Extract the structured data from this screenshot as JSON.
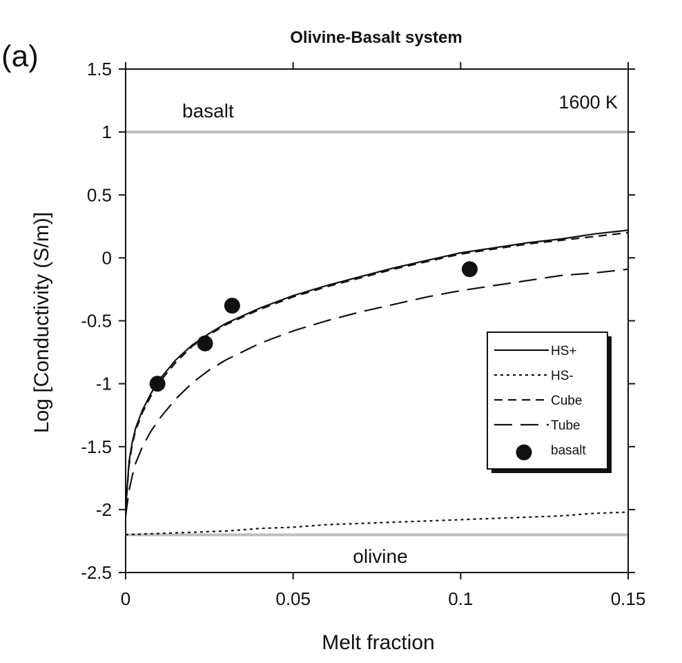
{
  "panel_label": "(a)",
  "chart_data": {
    "type": "line",
    "title": "Olivine-Basalt system",
    "xlabel": "Melt fraction",
    "ylabel": "Log [Conductivity (S/m)]",
    "xlim": [
      0,
      0.15
    ],
    "ylim": [
      -2.5,
      1.5
    ],
    "x_ticks": [
      0,
      0.05,
      0.1,
      0.15
    ],
    "x_tick_labels": [
      "0",
      "0.05",
      "0.1",
      "0.15"
    ],
    "y_ticks": [
      1.5,
      1,
      0.5,
      0,
      -0.5,
      -1,
      -1.5,
      -2,
      -2.5
    ],
    "y_tick_labels": [
      "1.5",
      "1",
      "0.5",
      "0",
      "-0.5",
      "-1",
      "-1.5",
      "-2",
      "-2.5"
    ],
    "grid": false,
    "annotations": {
      "temperature": "1600 K",
      "upper_reference_label": "basalt",
      "lower_reference_label": "olivine"
    },
    "reference_lines": [
      {
        "label": "basalt",
        "y": 1.0,
        "color": "#bdbdbd"
      },
      {
        "label": "olivine",
        "y": -2.2,
        "color": "#bdbdbd"
      }
    ],
    "legend_position": "right",
    "legend": [
      {
        "name": "HS+",
        "style": "solid"
      },
      {
        "name": "HS-",
        "style": "dotted"
      },
      {
        "name": "Cube",
        "style": "dashed"
      },
      {
        "name": "Tube",
        "style": "longdash"
      },
      {
        "name": "basalt",
        "style": "marker"
      }
    ],
    "series": [
      {
        "name": "HS+",
        "style": "solid",
        "x": [
          0,
          0.001,
          0.002,
          0.003,
          0.005,
          0.0075,
          0.01,
          0.015,
          0.02,
          0.025,
          0.03,
          0.04,
          0.05,
          0.06,
          0.07,
          0.08,
          0.09,
          0.1,
          0.11,
          0.12,
          0.13,
          0.14,
          0.15
        ],
        "y": [
          -2.0,
          -1.62,
          -1.46,
          -1.35,
          -1.21,
          -1.08,
          -0.97,
          -0.81,
          -0.69,
          -0.6,
          -0.52,
          -0.4,
          -0.3,
          -0.22,
          -0.15,
          -0.08,
          -0.02,
          0.04,
          0.08,
          0.12,
          0.15,
          0.19,
          0.22
        ]
      },
      {
        "name": "HS-",
        "style": "dotted",
        "x": [
          0,
          0.01,
          0.02,
          0.03,
          0.04,
          0.05,
          0.06,
          0.07,
          0.08,
          0.09,
          0.1,
          0.11,
          0.12,
          0.13,
          0.14,
          0.15
        ],
        "y": [
          -2.2,
          -2.19,
          -2.18,
          -2.17,
          -2.15,
          -2.14,
          -2.12,
          -2.11,
          -2.1,
          -2.09,
          -2.08,
          -2.07,
          -2.06,
          -2.05,
          -2.03,
          -2.02
        ]
      },
      {
        "name": "Cube",
        "style": "dashed",
        "x": [
          0,
          0.001,
          0.002,
          0.003,
          0.005,
          0.0075,
          0.01,
          0.015,
          0.02,
          0.025,
          0.03,
          0.04,
          0.05,
          0.06,
          0.07,
          0.08,
          0.09,
          0.1,
          0.11,
          0.12,
          0.13,
          0.14,
          0.15
        ],
        "y": [
          -2.0,
          -1.65,
          -1.48,
          -1.37,
          -1.23,
          -1.1,
          -0.99,
          -0.83,
          -0.7,
          -0.61,
          -0.53,
          -0.41,
          -0.31,
          -0.23,
          -0.16,
          -0.09,
          -0.03,
          0.03,
          0.07,
          0.11,
          0.14,
          0.17,
          0.2
        ]
      },
      {
        "name": "Tube",
        "style": "longdash",
        "x": [
          0,
          0.001,
          0.002,
          0.003,
          0.005,
          0.0075,
          0.01,
          0.015,
          0.02,
          0.025,
          0.03,
          0.04,
          0.05,
          0.06,
          0.07,
          0.08,
          0.09,
          0.1,
          0.11,
          0.12,
          0.13,
          0.14,
          0.15
        ],
        "y": [
          -2.05,
          -1.85,
          -1.73,
          -1.63,
          -1.5,
          -1.38,
          -1.28,
          -1.12,
          -0.99,
          -0.89,
          -0.81,
          -0.68,
          -0.58,
          -0.5,
          -0.43,
          -0.37,
          -0.31,
          -0.26,
          -0.22,
          -0.18,
          -0.14,
          -0.12,
          -0.09
        ]
      },
      {
        "name": "basalt",
        "style": "marker",
        "x": [
          0.0095,
          0.0237,
          0.0318,
          0.1027
        ],
        "y": [
          -1.0,
          -0.68,
          -0.38,
          -0.09
        ]
      }
    ]
  }
}
